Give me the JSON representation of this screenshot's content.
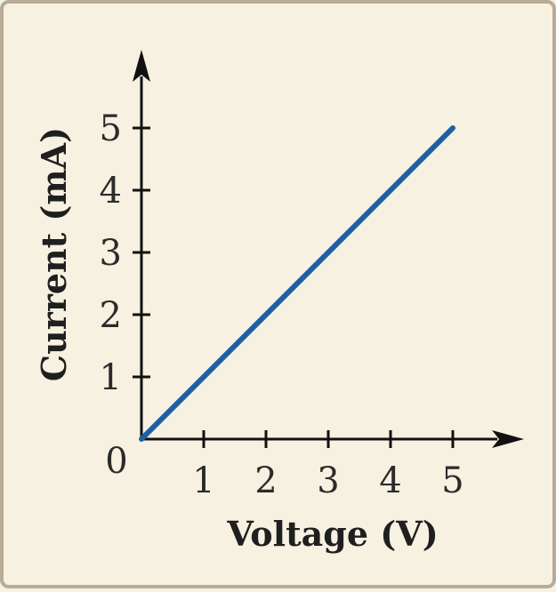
{
  "chart_data": {
    "type": "line",
    "title": "",
    "xlabel": "Voltage (V)",
    "ylabel": "Current (mA)",
    "x_ticks": [
      "1",
      "2",
      "3",
      "4",
      "5"
    ],
    "y_ticks": [
      "1",
      "2",
      "3",
      "4",
      "5"
    ],
    "origin_label": "0",
    "xlim": [
      0,
      6
    ],
    "ylim": [
      0,
      6
    ],
    "grid": false,
    "series": [
      {
        "x": [
          0,
          5
        ],
        "y": [
          0,
          5
        ],
        "color": "#1f5fa6"
      }
    ],
    "axis_color": "#111111"
  }
}
